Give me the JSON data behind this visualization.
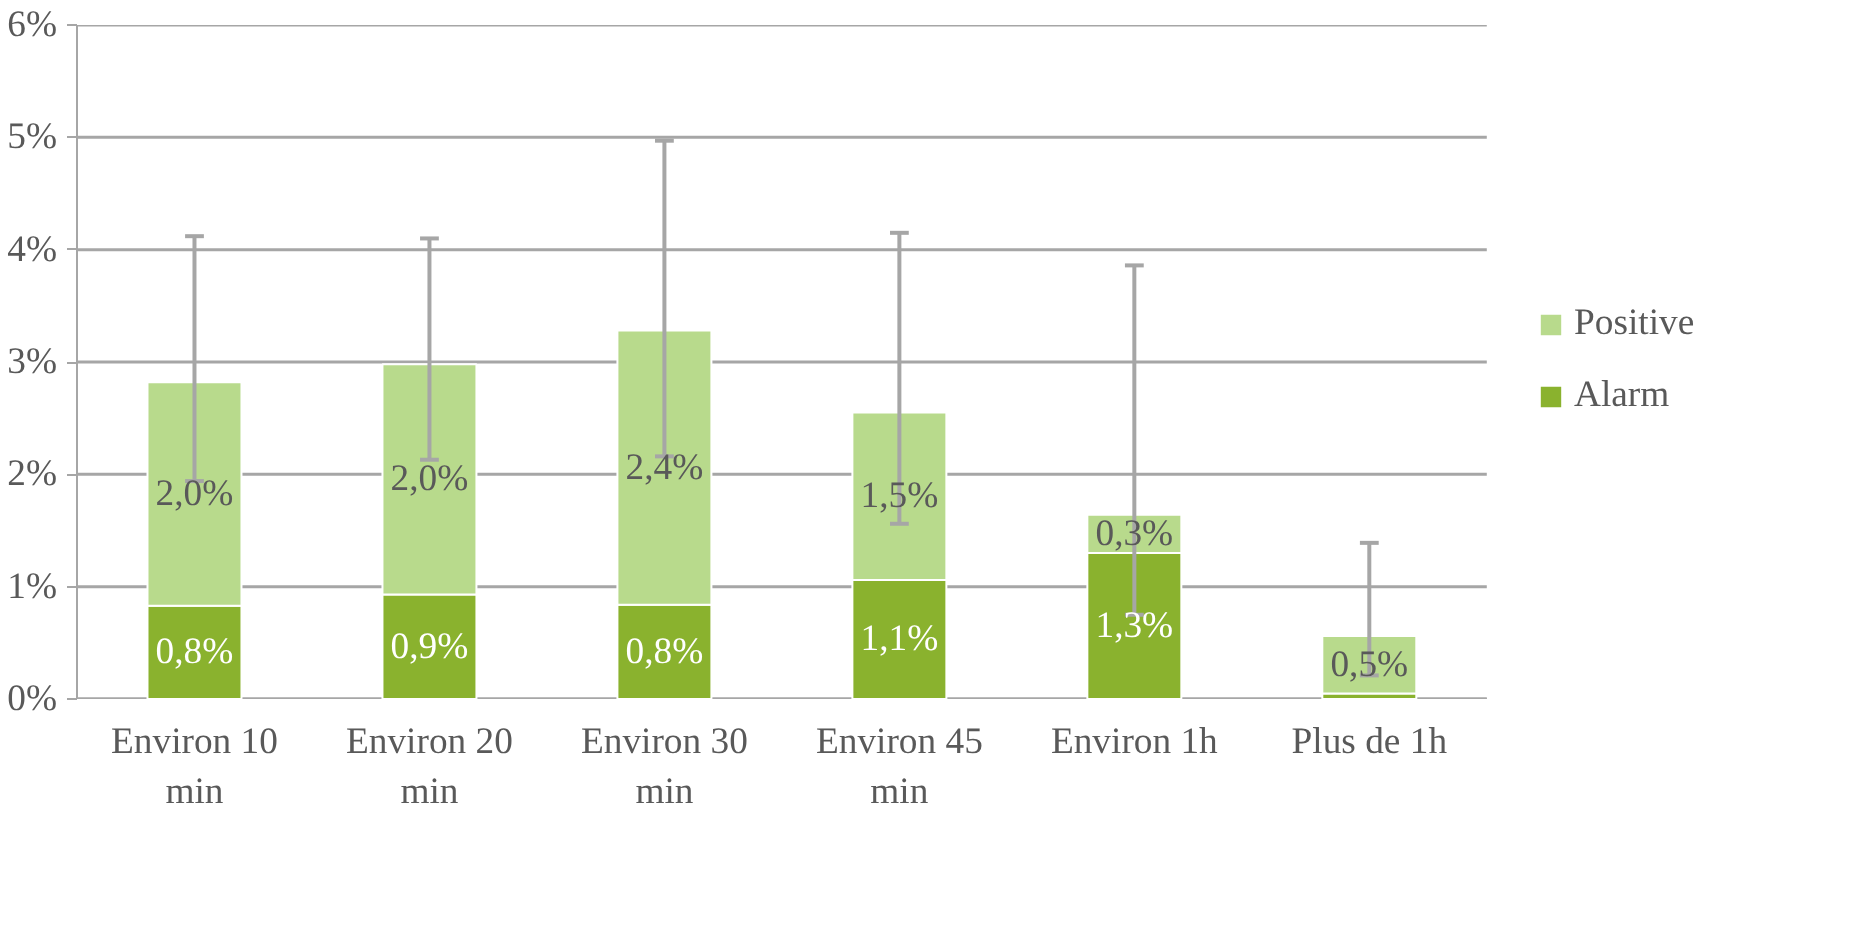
{
  "chart_data": {
    "type": "bar",
    "stacked": true,
    "categories": [
      "Environ 10 min",
      "Environ 20 min",
      "Environ 30 min",
      "Environ 45 min",
      "Environ 1h",
      "Plus de 1h"
    ],
    "series": [
      {
        "name": "Alarm",
        "color": "#8ab22e",
        "values": [
          0.83,
          0.93,
          0.84,
          1.06,
          1.3,
          0.05
        ],
        "value_labels": [
          "0,8%",
          "0,9%",
          "0,8%",
          "1,1%",
          "1,3%",
          null
        ]
      },
      {
        "name": "Positive",
        "color": "#b8da8c",
        "values": [
          1.99,
          2.05,
          2.44,
          1.49,
          0.34,
          0.51
        ],
        "value_labels": [
          "2,0%",
          "2,0%",
          "2,4%",
          "1,5%",
          "0,3%",
          "0,5%"
        ],
        "errors": [
          [
            1.94,
            4.12
          ],
          [
            2.13,
            4.1
          ],
          [
            2.16,
            4.97
          ],
          [
            1.56,
            4.15
          ],
          [
            0.75,
            3.86
          ],
          [
            0.21,
            1.39
          ]
        ]
      }
    ],
    "ylim": [
      0,
      6
    ],
    "yticks": [
      {
        "value": 0,
        "label": "0%"
      },
      {
        "value": 1,
        "label": "1%"
      },
      {
        "value": 2,
        "label": "2%"
      },
      {
        "value": 3,
        "label": "3%"
      },
      {
        "value": 4,
        "label": "4%"
      },
      {
        "value": 5,
        "label": "5%"
      },
      {
        "value": 6,
        "label": "6%"
      }
    ],
    "grid": "y",
    "legend": "right"
  }
}
